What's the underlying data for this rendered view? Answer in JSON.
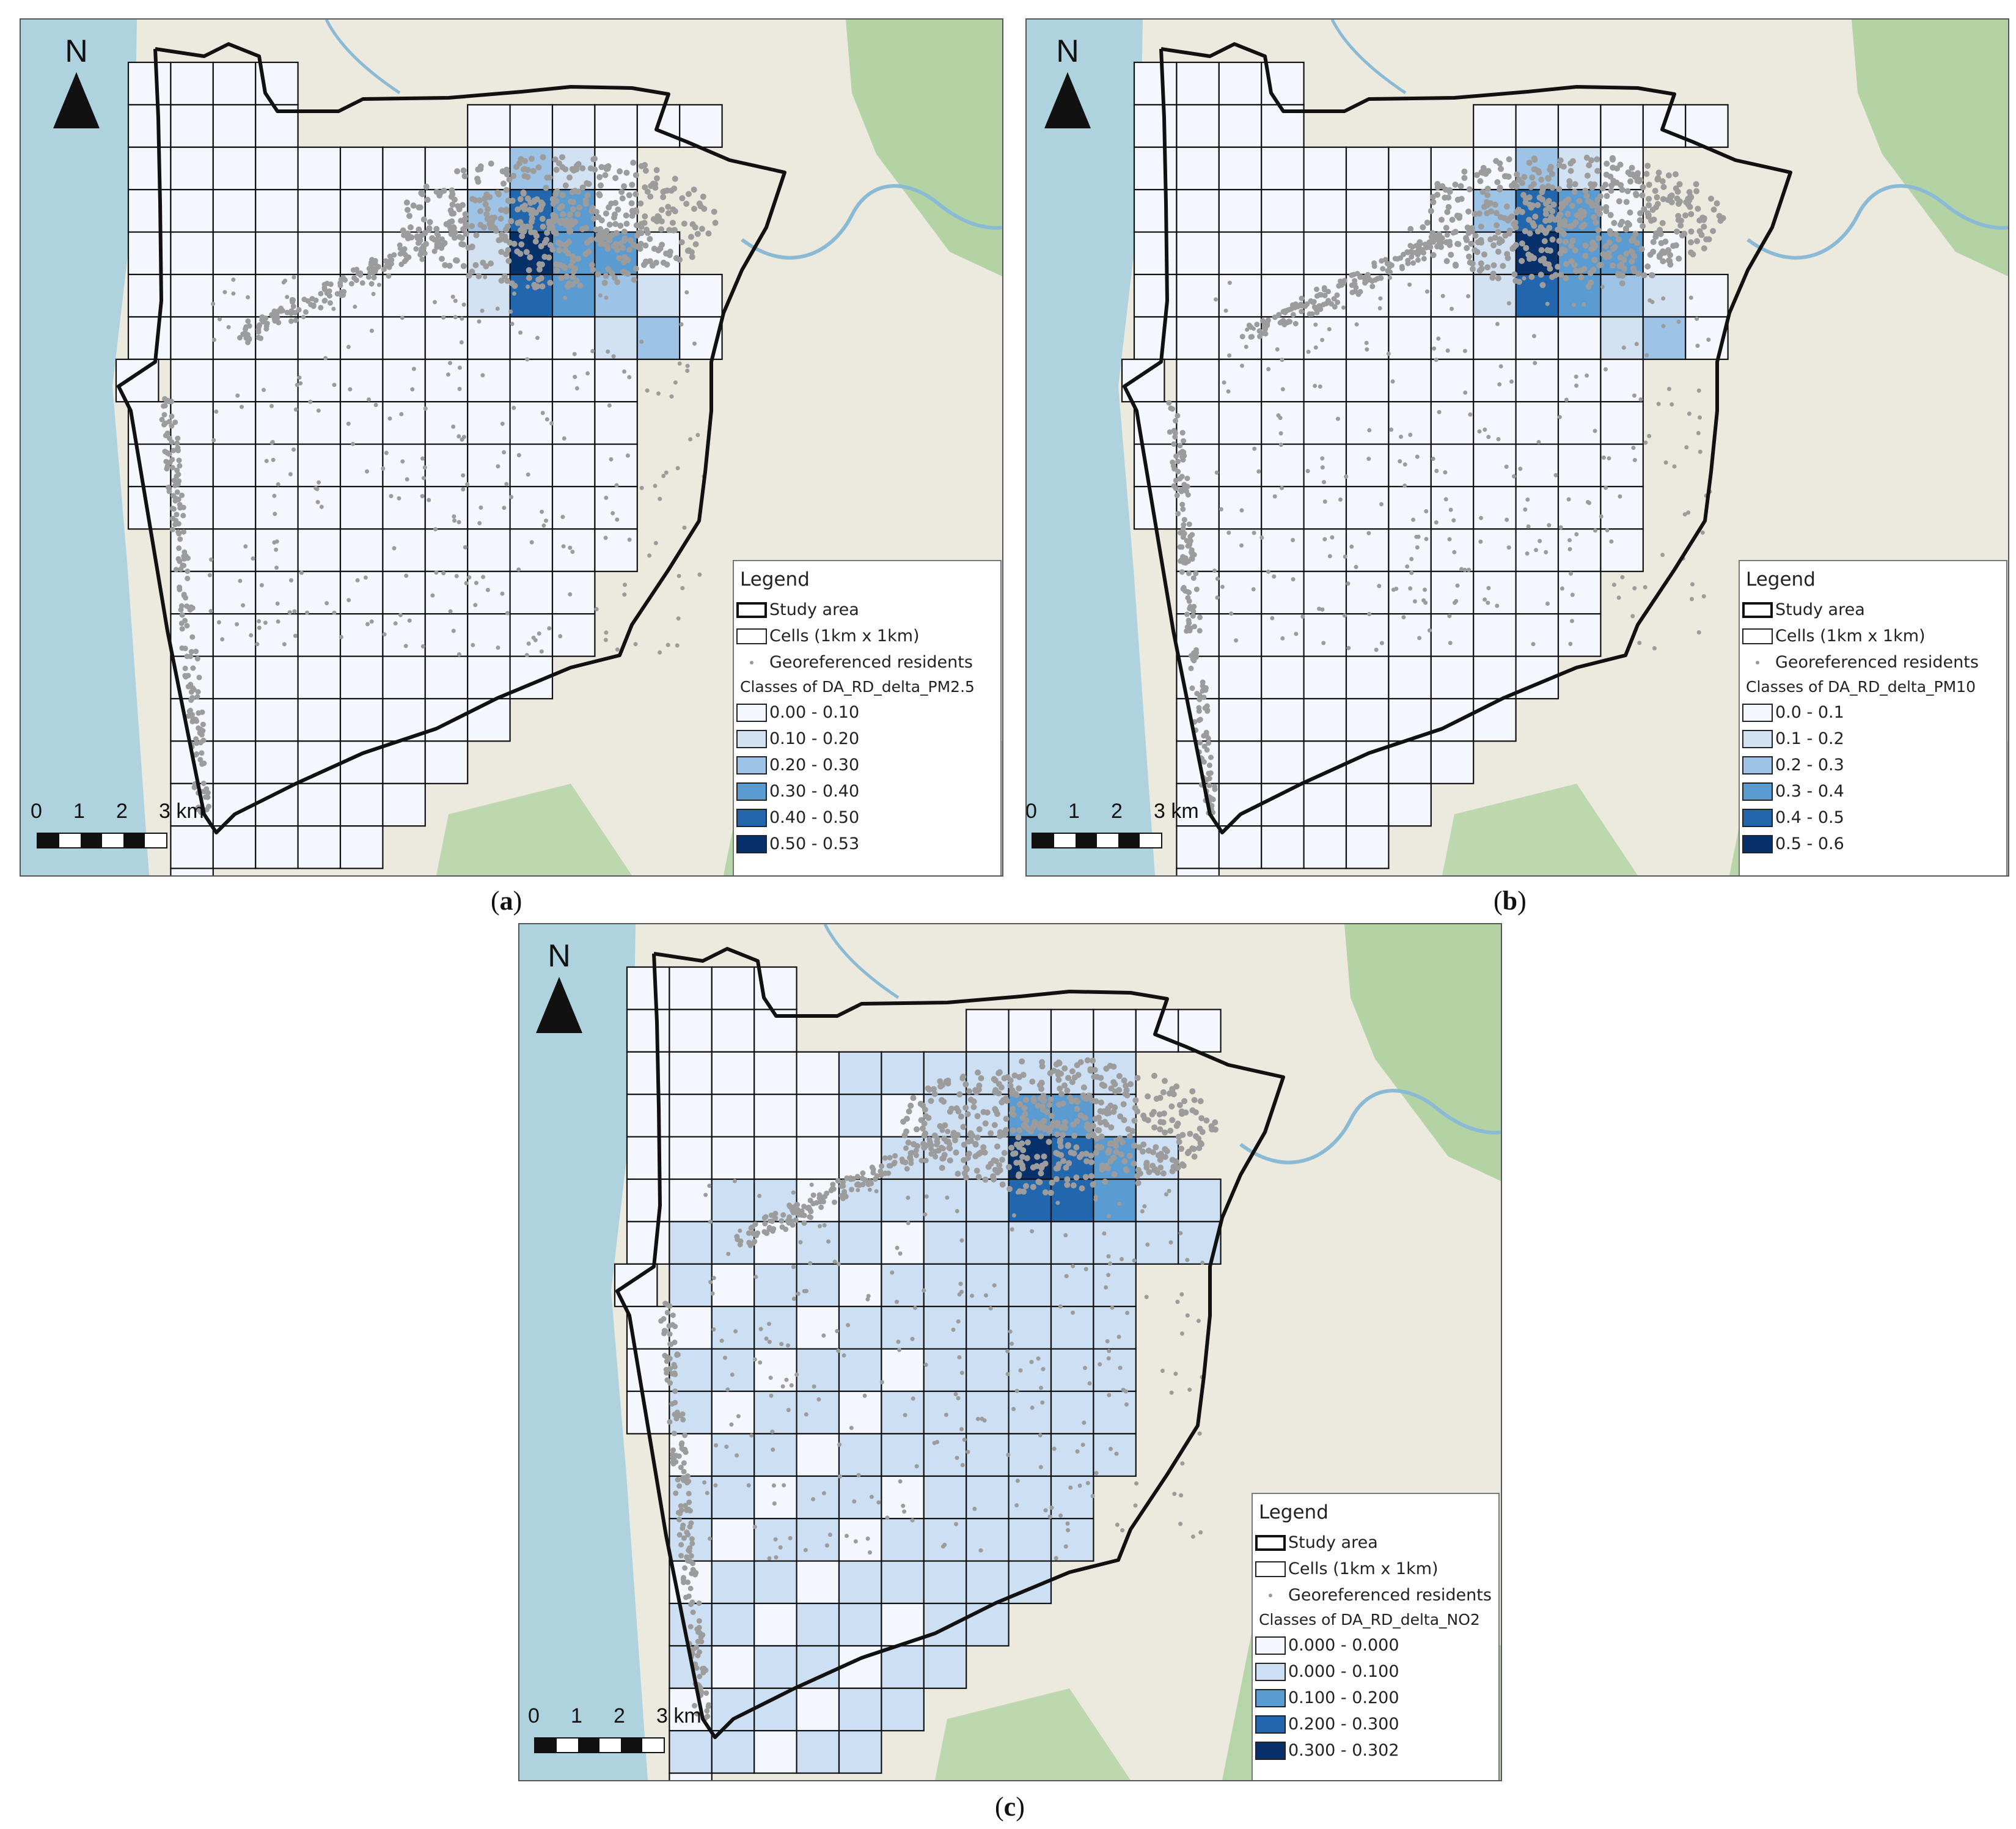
{
  "panels": [
    {
      "id": "a",
      "caption_letter": "a",
      "north_label": "N",
      "scale_labels": [
        "0",
        "1",
        "2",
        "3 km"
      ],
      "legend": {
        "title": "Legend",
        "study_area": "Study area",
        "cells": "Cells (1km x 1km)",
        "residents": "Georeferenced residents",
        "classes_title": "Classes of DA_RD_delta_PM2.5",
        "classes": [
          "0.00 - 0.10",
          "0.10 - 0.20",
          "0.20 - 0.30",
          "0.30 - 0.40",
          "0.40 - 0.50",
          "0.50 - 0.53"
        ]
      },
      "pollutant": "PM2.5"
    },
    {
      "id": "b",
      "caption_letter": "b",
      "north_label": "N",
      "scale_labels": [
        "0",
        "1",
        "2",
        "3 km"
      ],
      "legend": {
        "title": "Legend",
        "study_area": "Study area",
        "cells": "Cells (1km x 1km)",
        "residents": "Georeferenced residents",
        "classes_title": "Classes of DA_RD_delta_PM10",
        "classes": [
          "0.0 - 0.1",
          "0.1 - 0.2",
          "0.2 - 0.3",
          "0.3 - 0.4",
          "0.4 - 0.5",
          "0.5 - 0.6"
        ]
      },
      "pollutant": "PM10"
    },
    {
      "id": "c",
      "caption_letter": "c",
      "north_label": "N",
      "scale_labels": [
        "0",
        "1",
        "2",
        "3 km"
      ],
      "legend": {
        "title": "Legend",
        "study_area": "Study area",
        "cells": "Cells (1km x 1km)",
        "residents": "Georeferenced residents",
        "classes_title": "Classes of DA_RD_delta_NO2",
        "classes": [
          "0.000 - 0.000",
          "0.000 - 0.100",
          "0.100 - 0.200",
          "0.200 - 0.300",
          "0.300 - 0.302"
        ]
      },
      "pollutant": "NO2"
    }
  ],
  "class_colors_6": [
    "#f4f8fe",
    "#d3e2f3",
    "#9dc3e6",
    "#5a9bd2",
    "#2266ad",
    "#08306b"
  ],
  "class_colors_5": [
    "#f4f8fe",
    "#cddff2",
    "#5a9bd2",
    "#2266ad",
    "#08306b"
  ],
  "map_colors": {
    "sea": "#aed2de",
    "land": "#ece9df",
    "forest": "#a9cf9a",
    "river": "#8bbbd4",
    "dots": "#9c9c9c",
    "boundary": "#111111"
  }
}
